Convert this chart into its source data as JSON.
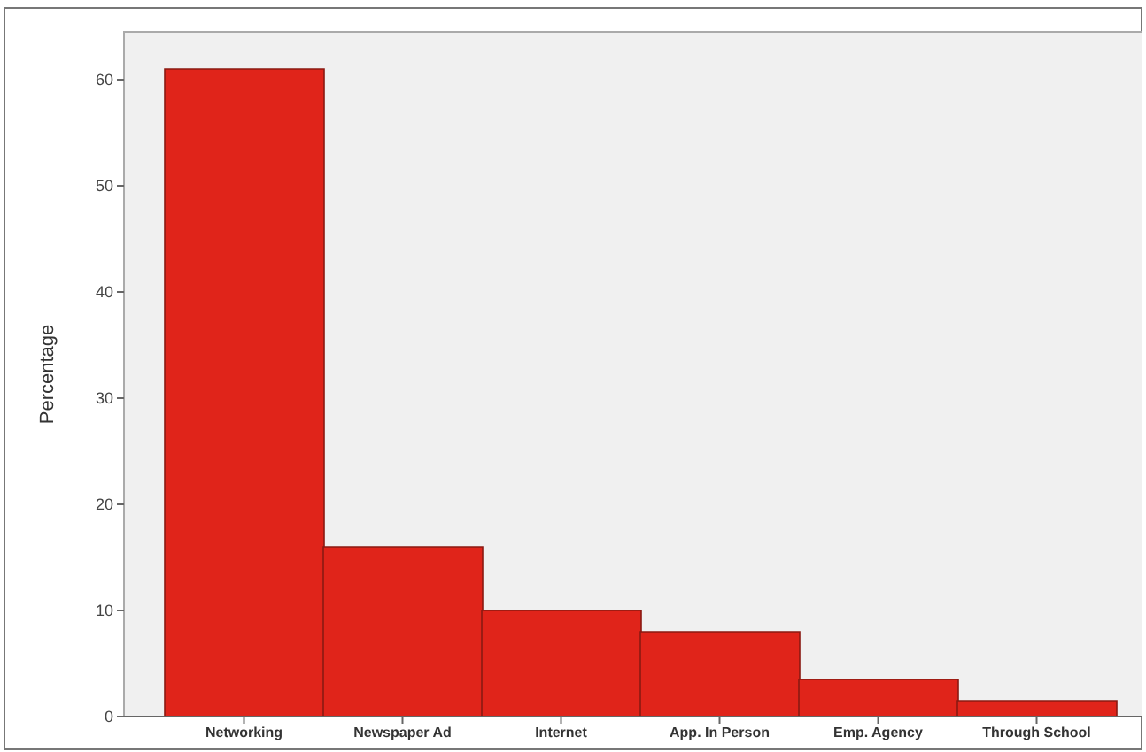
{
  "chart_data": {
    "type": "bar",
    "ylabel": "Percentage",
    "categories": [
      "Networking",
      "Newspaper Ad",
      "Internet",
      "App. In Person",
      "Emp. Agency",
      "Through School"
    ],
    "values": [
      61,
      16,
      10,
      8,
      3.5,
      1.5
    ],
    "color": "#e0241a",
    "ylim": [
      0,
      64.5
    ],
    "yticks": [
      0,
      10,
      20,
      30,
      40,
      50,
      60
    ]
  }
}
